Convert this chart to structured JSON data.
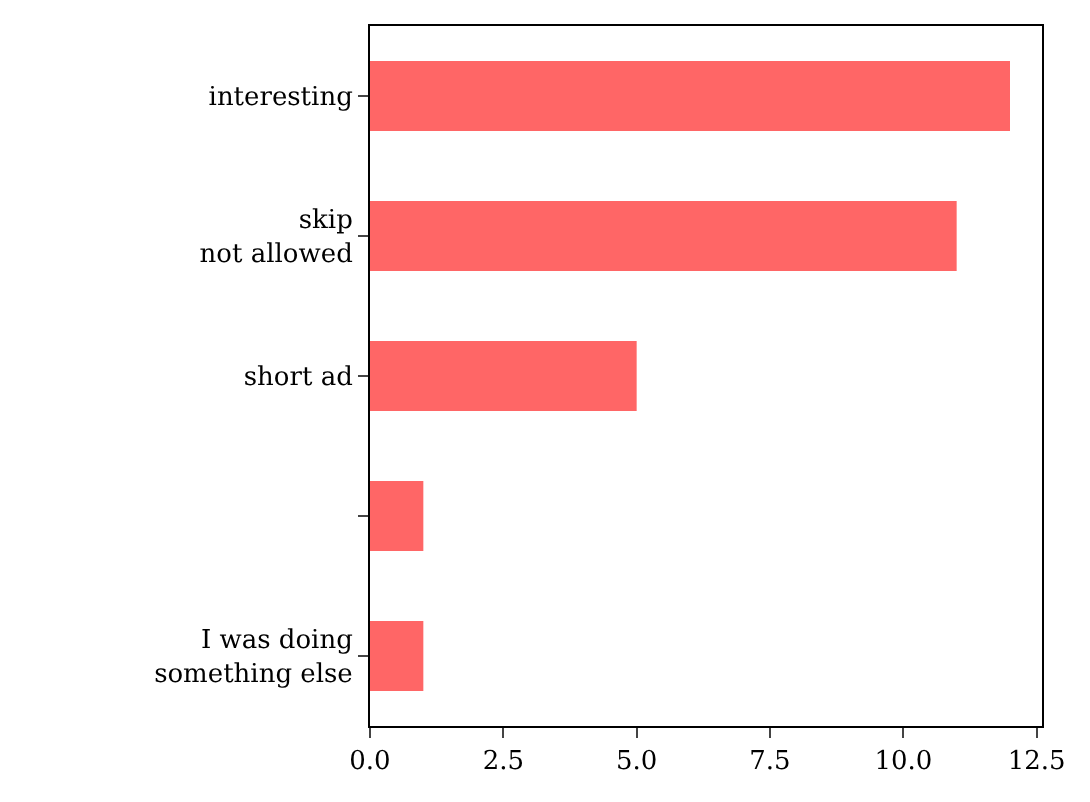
{
  "chart_data": {
    "type": "bar",
    "orientation": "horizontal",
    "categories": [
      "interesting",
      "skip\nnot allowed",
      "short ad",
      null,
      "I was doing\nsomething else"
    ],
    "values": [
      12,
      11,
      5,
      1,
      1
    ],
    "color": "#ff6666",
    "xlim": [
      0,
      12.6
    ],
    "xticks": [
      {
        "value": 0,
        "label": "0.0"
      },
      2.5,
      {
        "value": 5,
        "label": "5.0"
      },
      7.5,
      {
        "value": 10,
        "label": "10.0"
      },
      12.5
    ],
    "grid": false,
    "legend": false
  }
}
